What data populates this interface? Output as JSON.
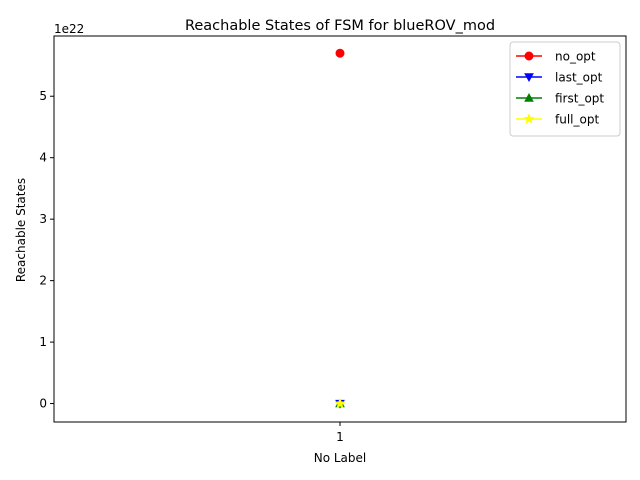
{
  "chart_data": {
    "type": "line",
    "title": "Reachable States of FSM for blueROV_mod",
    "xlabel": "No Label",
    "ylabel": "Reachable States",
    "categories": [
      "1"
    ],
    "ylim": [
      -3e+21,
      5.98e+22
    ],
    "yticks": [
      0,
      1e+22,
      2e+22,
      3e+22,
      4e+22,
      5e+22
    ],
    "ytick_labels": [
      "0",
      "1",
      "2",
      "3",
      "4",
      "5"
    ],
    "y_offset_label": "1e22",
    "grid": false,
    "legend_position": "top-right",
    "series": [
      {
        "name": "no_opt",
        "values": [
          5.7e+22
        ],
        "color": "#ff0000",
        "marker": "circle"
      },
      {
        "name": "last_opt",
        "values": [
          0
        ],
        "color": "#0000ff",
        "marker": "triangle-down"
      },
      {
        "name": "first_opt",
        "values": [
          0
        ],
        "color": "#008000",
        "marker": "triangle-up"
      },
      {
        "name": "full_opt",
        "values": [
          0
        ],
        "color": "#ffff00",
        "marker": "star"
      }
    ]
  }
}
